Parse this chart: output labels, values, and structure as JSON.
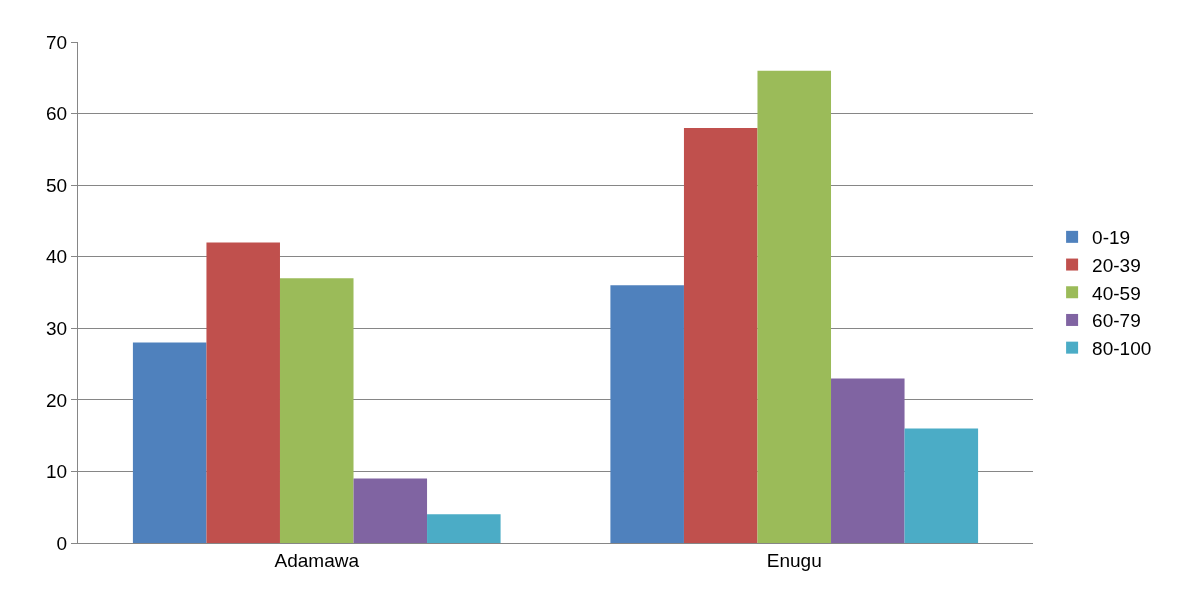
{
  "chart_data": {
    "type": "bar",
    "categories": [
      "Adamawa",
      "Enugu"
    ],
    "series": [
      {
        "name": "0-19",
        "color": "#4f81bd",
        "values": [
          28,
          36
        ]
      },
      {
        "name": "20-39",
        "color": "#c0504d",
        "values": [
          42,
          58
        ]
      },
      {
        "name": "40-59",
        "color": "#9bbb59",
        "values": [
          37,
          66
        ]
      },
      {
        "name": "60-79",
        "color": "#8064a2",
        "values": [
          9,
          23
        ]
      },
      {
        "name": "80-100",
        "color": "#4bacc6",
        "values": [
          4,
          16
        ]
      }
    ],
    "ylim": [
      0,
      70
    ],
    "yticks": [
      0,
      10,
      20,
      30,
      40,
      50,
      60,
      70
    ],
    "grid": "y",
    "legend": "right"
  }
}
